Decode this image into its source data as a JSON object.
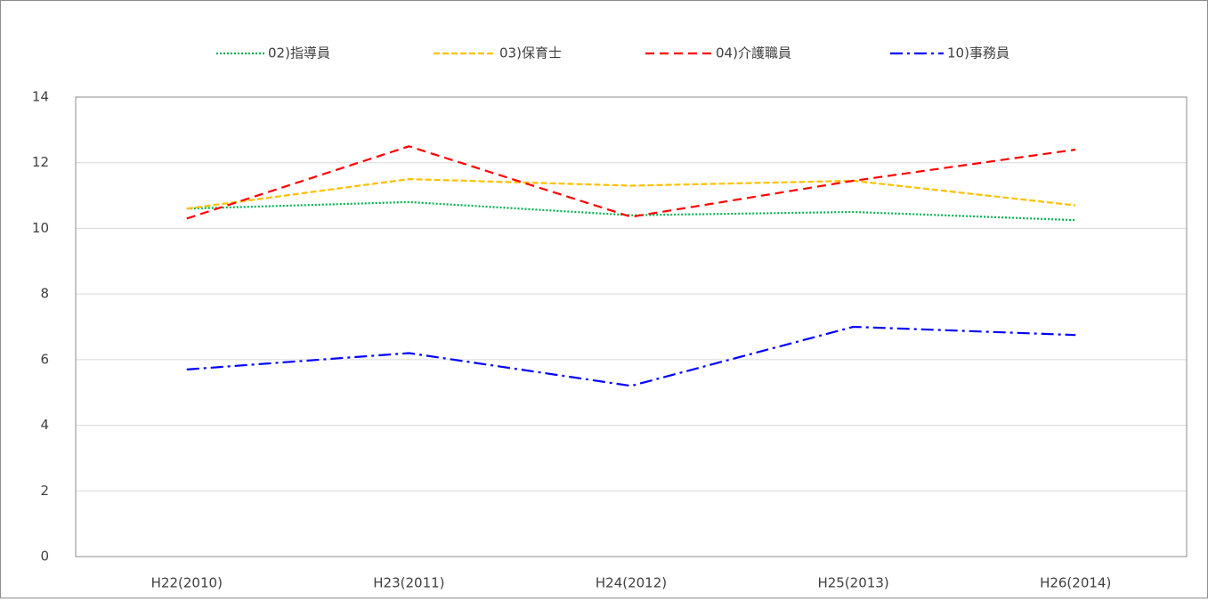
{
  "chart_data": {
    "type": "line",
    "categories": [
      "H22(2010)",
      "H23(2011)",
      "H24(2012)",
      "H25(2013)",
      "H26(2014)"
    ],
    "series": [
      {
        "name": "02)指導員",
        "color": "#00b050",
        "dash": "dotted",
        "values": [
          10.6,
          10.8,
          10.4,
          10.5,
          10.25
        ]
      },
      {
        "name": "03)保育士",
        "color": "#ffc000",
        "dash": "dashed",
        "values": [
          10.6,
          11.5,
          11.3,
          11.45,
          10.7
        ]
      },
      {
        "name": "04)介護職員",
        "color": "#ff0000",
        "dash": "long-dashed",
        "values": [
          10.3,
          12.5,
          10.35,
          11.45,
          12.4
        ]
      },
      {
        "name": "10)事務員",
        "color": "#0000ff",
        "dash": "dash-dot",
        "values": [
          5.7,
          6.2,
          5.2,
          7.0,
          6.75
        ]
      }
    ],
    "ylim": [
      0,
      14
    ],
    "yticks": [
      0,
      2,
      4,
      6,
      8,
      10,
      12,
      14
    ],
    "grid": true,
    "legend": "top"
  }
}
